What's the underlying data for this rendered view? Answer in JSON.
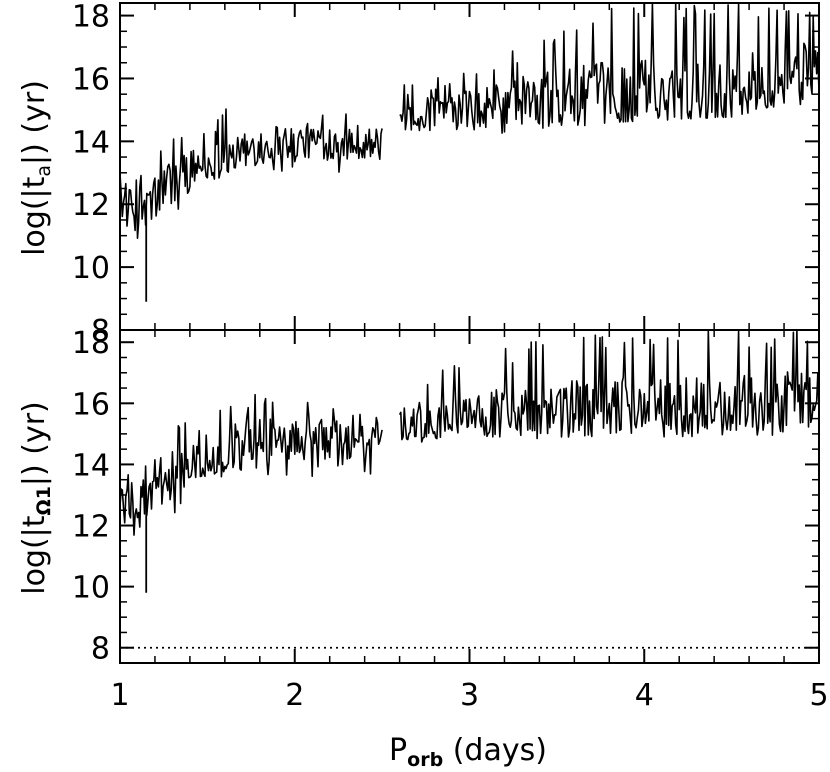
{
  "chart_data": [
    {
      "type": "line",
      "panel": "top",
      "ylabel": "log(|t_a|) (yr)",
      "ylabel_parts": {
        "pre": "log(|t",
        "sub": "a",
        "post": "|)  (yr)"
      },
      "xlim": [
        1,
        5
      ],
      "ylim": [
        8,
        18.4
      ],
      "yticks": [
        8,
        10,
        12,
        14,
        16,
        18
      ],
      "reference_line": {
        "y": 8.0,
        "style": "dotted"
      },
      "segments": [
        {
          "x": [
            1.0,
            1.03,
            1.06,
            1.09,
            1.12,
            1.15,
            1.18,
            1.22,
            1.26,
            1.3,
            1.35,
            1.4,
            1.45,
            1.5,
            1.55,
            1.6,
            1.65,
            1.7,
            1.75,
            1.8,
            1.85,
            1.9,
            1.95,
            2.0,
            2.05,
            2.1,
            2.15,
            2.2,
            2.25,
            2.3,
            2.35,
            2.4,
            2.45,
            2.5
          ],
          "y": [
            12.2,
            11.9,
            11.8,
            11.7,
            11.8,
            11.9,
            12.0,
            12.3,
            12.5,
            12.7,
            12.9,
            13.1,
            13.2,
            13.3,
            13.4,
            13.5,
            13.6,
            13.7,
            13.8,
            13.9,
            13.9,
            14.0,
            14.0,
            14.0,
            14.0,
            14.0,
            14.0,
            14.0,
            14.0,
            14.0,
            14.0,
            14.0,
            13.9,
            13.9
          ]
        },
        {
          "x": [
            2.6,
            2.7,
            2.8,
            2.9,
            3.0,
            3.1,
            3.2,
            3.3,
            3.4,
            3.5,
            3.6,
            3.7,
            3.8,
            3.9,
            4.0,
            4.1,
            4.2,
            4.3,
            4.4,
            4.5,
            4.6,
            4.7,
            4.8,
            4.9,
            5.0
          ],
          "y": [
            14.7,
            14.8,
            14.9,
            14.9,
            15.0,
            15.1,
            15.2,
            15.3,
            15.3,
            15.4,
            15.4,
            15.5,
            15.5,
            15.5,
            15.6,
            15.6,
            15.6,
            15.6,
            15.6,
            15.7,
            15.8,
            16.0,
            16.1,
            16.2,
            16.4
          ]
        }
      ],
      "envelope": {
        "x": [
          1.0,
          1.1,
          1.2,
          1.3,
          1.4,
          1.5,
          1.6,
          1.7,
          1.8,
          1.9,
          2.0,
          2.2,
          2.5,
          2.6,
          3.0,
          3.4,
          3.8,
          4.2,
          4.6,
          5.0
        ],
        "y_min": [
          11.0,
          10.3,
          10.8,
          11.5,
          12.2,
          12.6,
          12.8,
          13.0,
          13.1,
          13.0,
          13.0,
          13.0,
          13.1,
          14.0,
          14.1,
          14.3,
          14.6,
          14.7,
          14.8,
          15.0
        ],
        "y_max": [
          13.0,
          13.3,
          13.7,
          14.4,
          14.7,
          14.6,
          15.1,
          14.9,
          15.5,
          15.2,
          15.0,
          15.2,
          15.0,
          15.8,
          16.4,
          17.3,
          18.4,
          18.4,
          18.4,
          18.4
        ]
      },
      "outliers": [
        {
          "x": 1.15,
          "y": 8.9
        }
      ]
    },
    {
      "type": "line",
      "panel": "bottom",
      "xlabel": "P_orb (days)",
      "xlabel_parts": {
        "pre": "P",
        "sub": "orb",
        "post": " (days)"
      },
      "ylabel": "log(|t_Ω1|) (yr)",
      "ylabel_parts": {
        "pre": "log(|t",
        "sub": "Ω1",
        "post": "|)  (yr)"
      },
      "xlim": [
        1,
        5
      ],
      "ylim": [
        7.5,
        18.4
      ],
      "xticks": [
        1,
        2,
        3,
        4,
        5
      ],
      "yticks": [
        8,
        10,
        12,
        14,
        16,
        18
      ],
      "reference_line": {
        "y": 8.0,
        "style": "dotted"
      },
      "segments": [
        {
          "x": [
            1.0,
            1.03,
            1.06,
            1.09,
            1.12,
            1.15,
            1.18,
            1.22,
            1.26,
            1.3,
            1.35,
            1.4,
            1.45,
            1.5,
            1.55,
            1.6,
            1.65,
            1.7,
            1.75,
            1.8,
            1.85,
            1.9,
            1.95,
            2.0,
            2.05,
            2.1,
            2.15,
            2.2,
            2.25,
            2.3,
            2.35,
            2.4,
            2.45,
            2.5
          ],
          "y": [
            13.0,
            12.8,
            12.7,
            12.6,
            12.7,
            12.8,
            12.9,
            13.2,
            13.4,
            13.6,
            13.8,
            14.0,
            14.1,
            14.2,
            14.3,
            14.4,
            14.5,
            14.6,
            14.7,
            14.7,
            14.8,
            14.8,
            14.8,
            14.8,
            14.8,
            14.8,
            14.8,
            14.8,
            14.8,
            14.8,
            14.8,
            14.8,
            14.8,
            14.8
          ]
        },
        {
          "x": [
            2.6,
            2.7,
            2.8,
            2.9,
            3.0,
            3.1,
            3.2,
            3.3,
            3.4,
            3.5,
            3.6,
            3.7,
            3.8,
            3.9,
            4.0,
            4.1,
            4.2,
            4.3,
            4.4,
            4.5,
            4.6,
            4.7,
            4.8,
            4.9,
            5.0
          ],
          "y": [
            15.3,
            15.4,
            15.4,
            15.5,
            15.5,
            15.6,
            15.6,
            15.7,
            15.7,
            15.8,
            15.8,
            15.8,
            15.9,
            15.9,
            15.9,
            15.9,
            15.9,
            15.9,
            15.9,
            15.9,
            16.0,
            16.0,
            16.1,
            16.2,
            16.3
          ]
        }
      ],
      "envelope": {
        "x": [
          1.0,
          1.1,
          1.2,
          1.3,
          1.4,
          1.5,
          1.6,
          1.7,
          1.8,
          1.9,
          2.0,
          2.2,
          2.5,
          2.6,
          3.0,
          3.4,
          3.8,
          4.2,
          4.6,
          5.0
        ],
        "y_min": [
          12.0,
          11.2,
          11.5,
          12.3,
          13.0,
          13.5,
          13.6,
          13.8,
          13.7,
          13.6,
          13.6,
          13.6,
          13.7,
          14.5,
          14.6,
          14.8,
          14.9,
          14.9,
          14.9,
          15.0
        ],
        "y_max": [
          14.0,
          14.2,
          14.5,
          15.3,
          15.6,
          15.5,
          15.9,
          15.9,
          16.6,
          16.1,
          16.0,
          16.1,
          15.8,
          16.8,
          17.6,
          18.1,
          18.4,
          18.4,
          18.4,
          18.4
        ]
      },
      "outliers": [
        {
          "x": 1.15,
          "y": 9.8
        }
      ]
    }
  ]
}
